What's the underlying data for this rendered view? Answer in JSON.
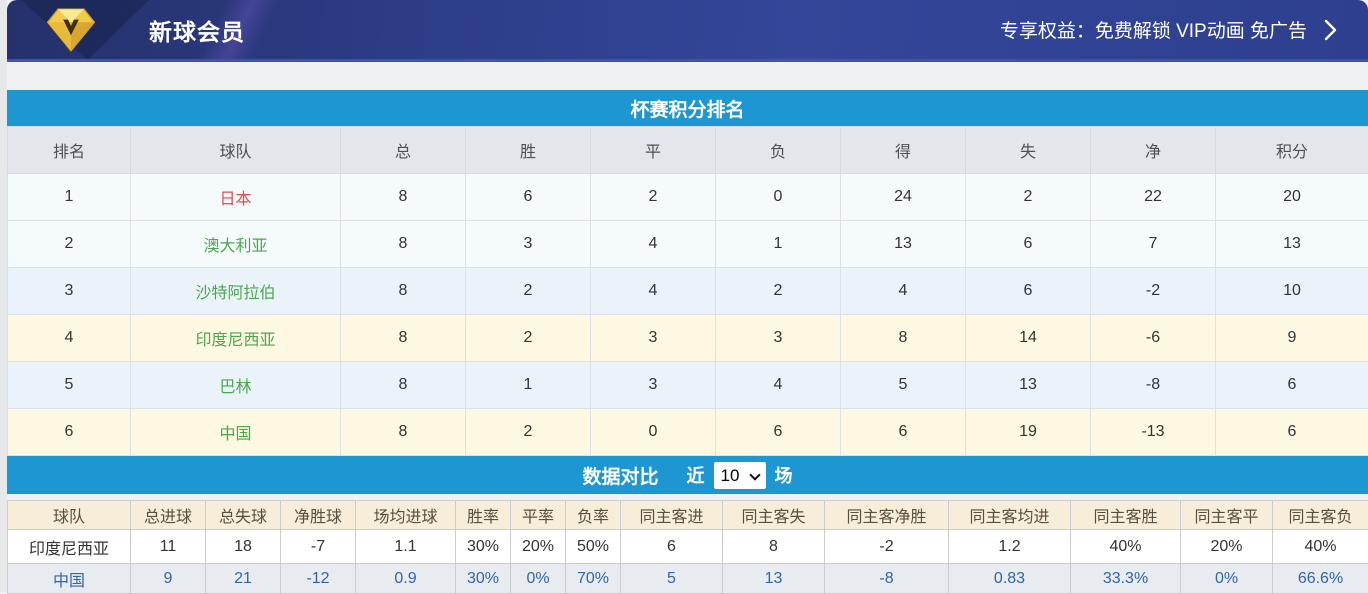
{
  "banner": {
    "title": "新球会员",
    "benefits": "专享权益：免费解锁 VIP动画 免广告",
    "logo_letter": "V"
  },
  "standings": {
    "title": "杯赛积分排名",
    "columns": [
      "排名",
      "球队",
      "总",
      "胜",
      "平",
      "负",
      "得",
      "失",
      "净",
      "积分"
    ],
    "rows": [
      {
        "rank": "1",
        "team": "日本",
        "team_color": "red",
        "highlight": false,
        "values": [
          "8",
          "6",
          "2",
          "0",
          "24",
          "2",
          "22",
          "20"
        ]
      },
      {
        "rank": "2",
        "team": "澳大利亚",
        "team_color": "green",
        "highlight": false,
        "values": [
          "8",
          "3",
          "4",
          "1",
          "13",
          "6",
          "7",
          "13"
        ]
      },
      {
        "rank": "3",
        "team": "沙特阿拉伯",
        "team_color": "green",
        "highlight": false,
        "values": [
          "8",
          "2",
          "4",
          "2",
          "4",
          "6",
          "-2",
          "10"
        ]
      },
      {
        "rank": "4",
        "team": "印度尼西亚",
        "team_color": "green",
        "highlight": true,
        "values": [
          "8",
          "2",
          "3",
          "3",
          "8",
          "14",
          "-6",
          "9"
        ]
      },
      {
        "rank": "5",
        "team": "巴林",
        "team_color": "green",
        "highlight": false,
        "values": [
          "8",
          "1",
          "3",
          "4",
          "5",
          "13",
          "-8",
          "6"
        ]
      },
      {
        "rank": "6",
        "team": "中国",
        "team_color": "green",
        "highlight": true,
        "values": [
          "8",
          "2",
          "0",
          "6",
          "6",
          "19",
          "-13",
          "6"
        ]
      }
    ]
  },
  "comparison": {
    "title": "数据对比",
    "recent_label": "近",
    "recent_value": "10",
    "unit_label": "场",
    "columns": [
      "球队",
      "总进球",
      "总失球",
      "净胜球",
      "场均进球",
      "胜率",
      "平率",
      "负率",
      "同主客进",
      "同主客失",
      "同主客净胜",
      "同主客均进",
      "同主客胜",
      "同主客平",
      "同主客负"
    ],
    "rows": [
      {
        "team": "印度尼西亚",
        "values": [
          "11",
          "18",
          "-7",
          "1.1",
          "30%",
          "20%",
          "50%",
          "6",
          "8",
          "-2",
          "1.2",
          "40%",
          "20%",
          "40%"
        ]
      },
      {
        "team": "中国",
        "values": [
          "9",
          "21",
          "-12",
          "0.9",
          "30%",
          "0%",
          "70%",
          "5",
          "13",
          "-8",
          "0.83",
          "33.3%",
          "0%",
          "66.6%"
        ]
      }
    ]
  },
  "colors": {
    "section_bar_blue": "#1D96D2",
    "banner_navy": "#2C3C85",
    "highlight_row_yellow": "#FDF8E1",
    "team_red": "#E14B4B",
    "team_green": "#4CA74C",
    "compare_header_cream": "#F7EDD8",
    "compare_row2_blue_text": "#3465A4"
  }
}
